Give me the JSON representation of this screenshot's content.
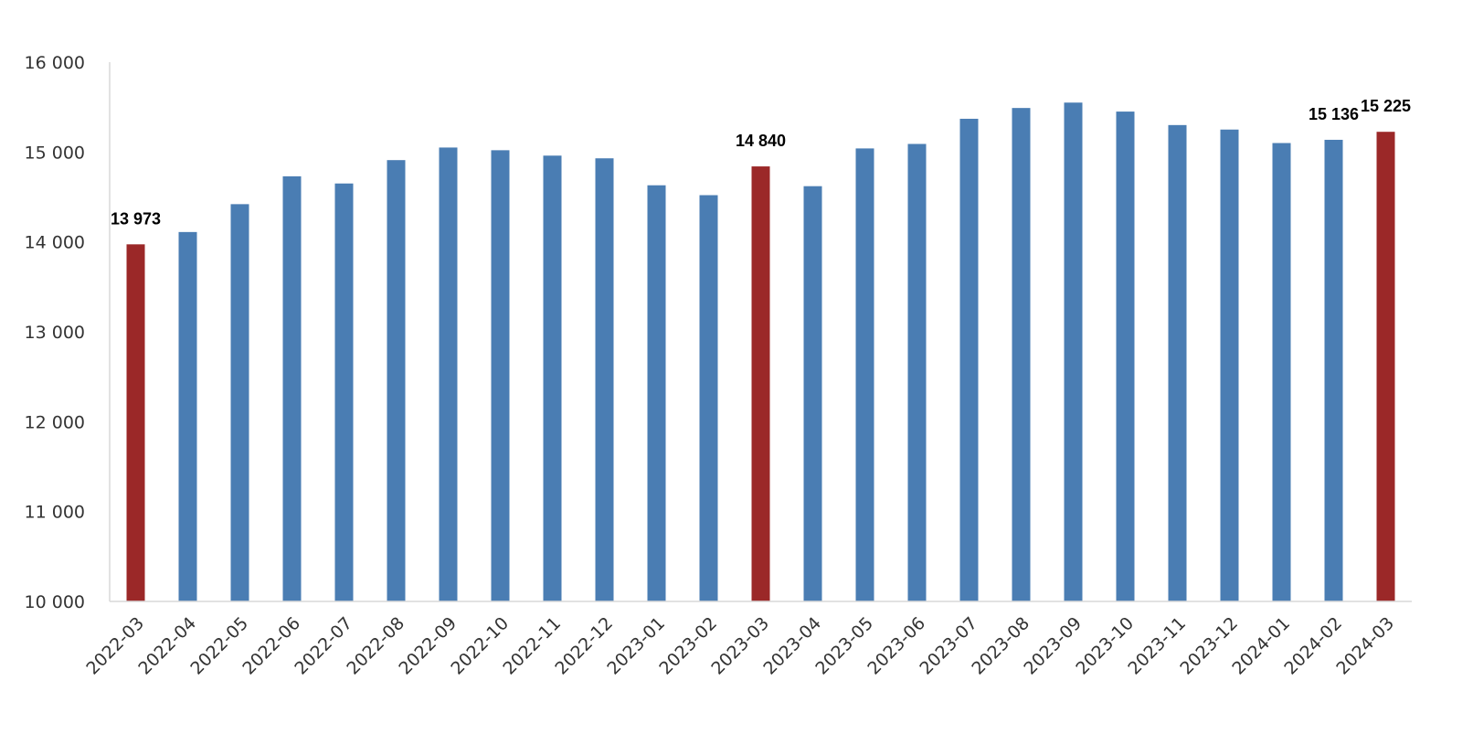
{
  "chart_data": {
    "type": "bar",
    "title": "",
    "xlabel": "",
    "ylabel": "",
    "ylim": [
      10000,
      16000
    ],
    "yticks": [
      10000,
      11000,
      12000,
      13000,
      14000,
      15000,
      16000
    ],
    "ytick_labels": [
      "10 000",
      "11 000",
      "12 000",
      "13 000",
      "14 000",
      "15 000",
      "16 000"
    ],
    "grid": false,
    "legend": "none",
    "categories": [
      "2022-03",
      "2022-04",
      "2022-05",
      "2022-06",
      "2022-07",
      "2022-08",
      "2022-09",
      "2022-10",
      "2022-11",
      "2022-12",
      "2023-01",
      "2023-02",
      "2023-03",
      "2023-04",
      "2023-05",
      "2023-06",
      "2023-07",
      "2023-08",
      "2023-09",
      "2023-10",
      "2023-11",
      "2023-12",
      "2024-01",
      "2024-02",
      "2024-03"
    ],
    "values": [
      13973,
      14110,
      14420,
      14730,
      14650,
      14910,
      15050,
      15020,
      14960,
      14930,
      14630,
      14520,
      14840,
      14620,
      15040,
      15090,
      15370,
      15490,
      15550,
      15450,
      15300,
      15250,
      15100,
      15136,
      15225
    ],
    "highlighted": [
      0,
      12,
      24
    ],
    "data_labels": [
      {
        "index": 0,
        "text": "13 973"
      },
      {
        "index": 12,
        "text": "14 840"
      },
      {
        "index": 23,
        "text": "15 136"
      },
      {
        "index": 24,
        "text": "15 225"
      }
    ],
    "colors": {
      "default": "#4a7db3",
      "highlight": "#9b2828",
      "axis": "#d9d9d9",
      "text": "#333333"
    }
  }
}
